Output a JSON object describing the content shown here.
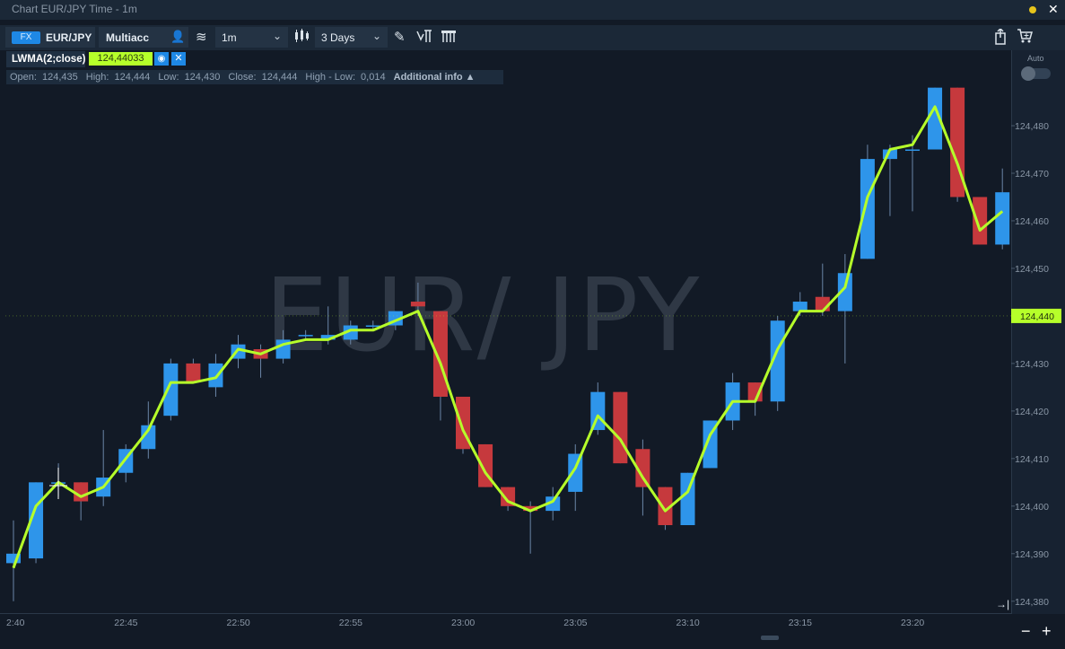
{
  "window": {
    "title": "Chart EUR/JPY Time - 1m",
    "close_glyph": "✕"
  },
  "toolbar": {
    "instrument_badge": "FX",
    "symbol": "EUR/JPY",
    "account": "Multiacc",
    "timeframe": "1m",
    "range": "3 Days",
    "icons": [
      "account-icon",
      "chart-type-icon",
      "candlestick-icon",
      "draw-icon",
      "indicators-icon",
      "history-icon",
      "export-icon",
      "cart-icon"
    ]
  },
  "indicator": {
    "name": "LWMA(2;close)",
    "value": "124,44033",
    "eye_icon": "◉",
    "close_icon": "✕"
  },
  "ohlc": {
    "open_label": "Open:",
    "open": "124,435",
    "high_label": "High:",
    "high": "124,444",
    "low_label": "Low:",
    "low": "124,430",
    "close_label": "Close:",
    "close": "124,444",
    "range_label": "High - Low:",
    "range": "0,014",
    "additional_info": "Additional info ▲"
  },
  "watermark": "EUR/ JPY",
  "price_axis": {
    "auto_label": "Auto",
    "current_price": "124,440",
    "current_value": 124.44
  },
  "zoom": {
    "minus": "−",
    "plus": "+"
  },
  "colors": {
    "up": "#2e95ea",
    "down": "#c6393d",
    "ma_line": "#b6ff2a",
    "background": "#121a26",
    "wick": "#6b86a8"
  },
  "chart_data": {
    "type": "candlestick",
    "series": [
      {
        "name": "EUR/JPY",
        "kind": "ohlc"
      },
      {
        "name": "LWMA(2;close)",
        "kind": "line"
      }
    ],
    "ylim": [
      124.3775,
      124.4885
    ],
    "y_ticks": [
      "124,380",
      "124,390",
      "124,400",
      "124,410",
      "124,420",
      "124,430",
      "124,440",
      "124,450",
      "124,460",
      "124,470",
      "124,480"
    ],
    "y_tick_values": [
      124.38,
      124.39,
      124.4,
      124.41,
      124.42,
      124.43,
      124.44,
      124.45,
      124.46,
      124.47,
      124.48
    ],
    "x_ticks": [
      "2:40",
      "22:45",
      "22:50",
      "22:55",
      "23:00",
      "23:05",
      "23:10",
      "23:15",
      "23:20"
    ],
    "x_tick_minutes": [
      0,
      5,
      10,
      15,
      20,
      25,
      30,
      35,
      40
    ],
    "candles": [
      {
        "t": 0,
        "o": 124.388,
        "h": 124.397,
        "l": 124.38,
        "c": 124.39
      },
      {
        "t": 1,
        "o": 124.389,
        "h": 124.405,
        "l": 124.388,
        "c": 124.405
      },
      {
        "t": 2,
        "o": 124.405,
        "h": 124.409,
        "l": 124.402,
        "c": 124.405
      },
      {
        "t": 3,
        "o": 124.405,
        "h": 124.405,
        "l": 124.397,
        "c": 124.401
      },
      {
        "t": 4,
        "o": 124.402,
        "h": 124.416,
        "l": 124.4,
        "c": 124.406
      },
      {
        "t": 5,
        "o": 124.407,
        "h": 124.413,
        "l": 124.405,
        "c": 124.412
      },
      {
        "t": 6,
        "o": 124.412,
        "h": 124.422,
        "l": 124.41,
        "c": 124.417
      },
      {
        "t": 7,
        "o": 124.419,
        "h": 124.431,
        "l": 124.418,
        "c": 124.43
      },
      {
        "t": 8,
        "o": 124.43,
        "h": 124.431,
        "l": 124.426,
        "c": 124.426
      },
      {
        "t": 9,
        "o": 124.425,
        "h": 124.432,
        "l": 124.423,
        "c": 124.43
      },
      {
        "t": 10,
        "o": 124.431,
        "h": 124.436,
        "l": 124.429,
        "c": 124.434
      },
      {
        "t": 11,
        "o": 124.433,
        "h": 124.434,
        "l": 124.427,
        "c": 124.431
      },
      {
        "t": 12,
        "o": 124.431,
        "h": 124.437,
        "l": 124.43,
        "c": 124.435
      },
      {
        "t": 13,
        "o": 124.436,
        "h": 124.437,
        "l": 124.435,
        "c": 124.436
      },
      {
        "t": 14,
        "o": 124.435,
        "h": 124.442,
        "l": 124.434,
        "c": 124.436
      },
      {
        "t": 15,
        "o": 124.435,
        "h": 124.439,
        "l": 124.434,
        "c": 124.438
      },
      {
        "t": 16,
        "o": 124.438,
        "h": 124.439,
        "l": 124.437,
        "c": 124.438
      },
      {
        "t": 17,
        "o": 124.438,
        "h": 124.441,
        "l": 124.437,
        "c": 124.441
      },
      {
        "t": 18,
        "o": 124.443,
        "h": 124.447,
        "l": 124.44,
        "c": 124.442
      },
      {
        "t": 19,
        "o": 124.441,
        "h": 124.441,
        "l": 124.418,
        "c": 124.423
      },
      {
        "t": 20,
        "o": 124.423,
        "h": 124.423,
        "l": 124.411,
        "c": 124.412
      },
      {
        "t": 21,
        "o": 124.413,
        "h": 124.413,
        "l": 124.404,
        "c": 124.404
      },
      {
        "t": 22,
        "o": 124.404,
        "h": 124.404,
        "l": 124.399,
        "c": 124.4
      },
      {
        "t": 23,
        "o": 124.4,
        "h": 124.401,
        "l": 124.39,
        "c": 124.399
      },
      {
        "t": 24,
        "o": 124.399,
        "h": 124.404,
        "l": 124.397,
        "c": 124.402
      },
      {
        "t": 25,
        "o": 124.403,
        "h": 124.413,
        "l": 124.399,
        "c": 124.411
      },
      {
        "t": 26,
        "o": 124.416,
        "h": 124.426,
        "l": 124.415,
        "c": 124.424
      },
      {
        "t": 27,
        "o": 124.424,
        "h": 124.424,
        "l": 124.409,
        "c": 124.409
      },
      {
        "t": 28,
        "o": 124.412,
        "h": 124.414,
        "l": 124.398,
        "c": 124.404
      },
      {
        "t": 29,
        "o": 124.404,
        "h": 124.404,
        "l": 124.395,
        "c": 124.396
      },
      {
        "t": 30,
        "o": 124.396,
        "h": 124.407,
        "l": 124.396,
        "c": 124.407
      },
      {
        "t": 31,
        "o": 124.408,
        "h": 124.418,
        "l": 124.408,
        "c": 124.418
      },
      {
        "t": 32,
        "o": 124.418,
        "h": 124.428,
        "l": 124.416,
        "c": 124.426
      },
      {
        "t": 33,
        "o": 124.426,
        "h": 124.426,
        "l": 124.419,
        "c": 124.422
      },
      {
        "t": 34,
        "o": 124.422,
        "h": 124.44,
        "l": 124.42,
        "c": 124.439
      },
      {
        "t": 35,
        "o": 124.441,
        "h": 124.445,
        "l": 124.44,
        "c": 124.443
      },
      {
        "t": 36,
        "o": 124.444,
        "h": 124.451,
        "l": 124.44,
        "c": 124.441
      },
      {
        "t": 37,
        "o": 124.441,
        "h": 124.453,
        "l": 124.43,
        "c": 124.449
      },
      {
        "t": 38,
        "o": 124.452,
        "h": 124.476,
        "l": 124.452,
        "c": 124.473
      },
      {
        "t": 39,
        "o": 124.473,
        "h": 124.476,
        "l": 124.461,
        "c": 124.475
      },
      {
        "t": 40,
        "o": 124.475,
        "h": 124.478,
        "l": 124.462,
        "c": 124.475
      },
      {
        "t": 41,
        "o": 124.475,
        "h": 124.488,
        "l": 124.475,
        "c": 124.488
      },
      {
        "t": 42,
        "o": 124.488,
        "h": 124.488,
        "l": 124.464,
        "c": 124.465
      },
      {
        "t": 43,
        "o": 124.465,
        "h": 124.465,
        "l": 124.455,
        "c": 124.455
      },
      {
        "t": 44,
        "o": 124.455,
        "h": 124.471,
        "l": 124.454,
        "c": 124.466
      }
    ],
    "lwma": [
      124.387,
      124.4,
      124.405,
      124.402,
      124.404,
      124.41,
      124.416,
      124.426,
      124.426,
      124.427,
      124.433,
      124.432,
      124.434,
      124.435,
      124.435,
      124.437,
      124.437,
      124.439,
      124.441,
      124.43,
      124.416,
      124.407,
      124.401,
      124.399,
      124.401,
      124.408,
      124.419,
      124.414,
      124.406,
      124.399,
      124.403,
      124.415,
      124.422,
      124.422,
      124.433,
      124.441,
      124.441,
      124.446,
      124.465,
      124.475,
      124.476,
      124.484,
      124.472,
      124.458,
      124.462
    ]
  }
}
